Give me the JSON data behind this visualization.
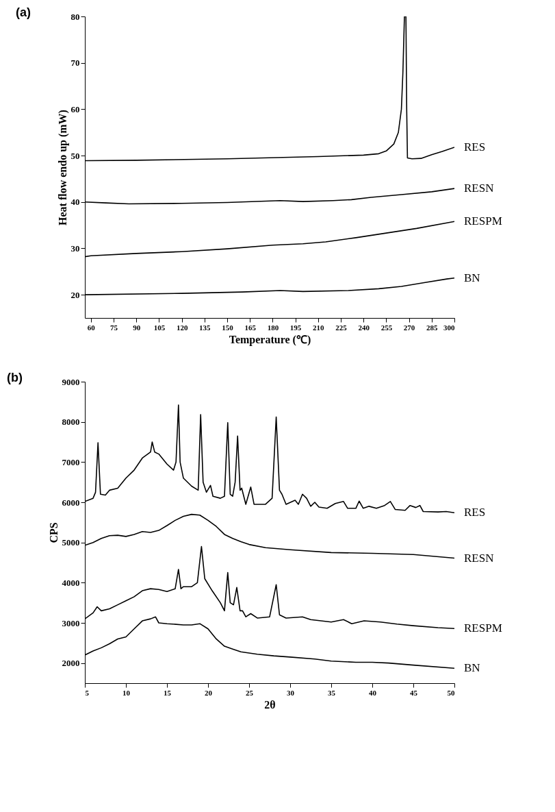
{
  "chart_data": [
    {
      "type": "line",
      "title": "(a)",
      "xlabel": "Temperature (℃)",
      "ylabel": "Heat flow endo up (mW)",
      "xlim": [
        56,
        300
      ],
      "ylim": [
        15,
        80
      ],
      "xticks": [
        60,
        75,
        90,
        105,
        120,
        135,
        150,
        165,
        180,
        195,
        210,
        225,
        240,
        255,
        270,
        285,
        300
      ],
      "yticks": [
        20,
        30,
        40,
        50,
        60,
        70,
        80
      ],
      "grid": false,
      "legend": false,
      "marker": "none",
      "line_style": "solid",
      "series": [
        {
          "name": "RES",
          "color": "#000000",
          "x": [
            56,
            90,
            150,
            210,
            240,
            250,
            255,
            260,
            263,
            265,
            266,
            267,
            268,
            268.5,
            269,
            272,
            278,
            285,
            292,
            300
          ],
          "values": [
            48.9,
            49.0,
            49.3,
            49.8,
            50.1,
            50.4,
            51,
            52.5,
            55,
            60,
            68,
            80,
            80,
            60,
            49.5,
            49.3,
            49.4,
            50.2,
            50.9,
            51.8
          ]
        },
        {
          "name": "RESN",
          "color": "#000000",
          "x": [
            56,
            70,
            85,
            120,
            150,
            185,
            200,
            220,
            232,
            245,
            265,
            285,
            300
          ],
          "values": [
            40,
            39.8,
            39.6,
            39.7,
            39.9,
            40.3,
            40.1,
            40.3,
            40.5,
            41.0,
            41.6,
            42.2,
            42.9
          ]
        },
        {
          "name": "RESPM",
          "color": "#000000",
          "x": [
            56,
            60,
            90,
            120,
            150,
            180,
            200,
            215,
            235,
            255,
            275,
            300
          ],
          "values": [
            28.2,
            28.4,
            28.9,
            29.3,
            29.9,
            30.7,
            31.0,
            31.4,
            32.3,
            33.3,
            34.3,
            35.8
          ]
        },
        {
          "name": "BN",
          "color": "#000000",
          "x": [
            56,
            120,
            160,
            185,
            200,
            230,
            250,
            265,
            280,
            295,
            300
          ],
          "values": [
            20,
            20.3,
            20.6,
            20.9,
            20.7,
            20.9,
            21.3,
            21.8,
            22.6,
            23.4,
            23.6
          ]
        }
      ]
    },
    {
      "type": "line",
      "title": "(b)",
      "xlabel": "2θ",
      "ylabel": "CPS",
      "xlim": [
        5,
        50
      ],
      "ylim": [
        1500,
        9000
      ],
      "xticks": [
        5,
        10,
        15,
        20,
        25,
        30,
        35,
        40,
        45,
        50
      ],
      "yticks": [
        2000,
        3000,
        4000,
        5000,
        6000,
        7000,
        8000,
        9000
      ],
      "grid": false,
      "legend": false,
      "marker": "none",
      "line_style": "solid",
      "series": [
        {
          "name": "RES",
          "color": "#000000",
          "x": [
            5,
            6,
            6.3,
            6.6,
            6.9,
            7.5,
            8,
            9,
            10,
            11,
            12,
            13,
            13.2,
            13.5,
            14,
            15,
            15.8,
            16.1,
            16.4,
            16.6,
            17,
            18,
            18.8,
            19.1,
            19.4,
            19.8,
            20.3,
            20.6,
            21.5,
            22,
            22.4,
            22.7,
            23,
            23.3,
            23.6,
            23.9,
            24.1,
            24.6,
            25.2,
            25.6,
            27,
            27.8,
            28.3,
            28.7,
            29.0,
            29.5,
            30.6,
            31.0,
            31.5,
            32,
            32.5,
            33,
            33.5,
            34.5,
            35.5,
            36.5,
            37,
            38,
            38.4,
            38.9,
            39.6,
            40.5,
            41.5,
            42.2,
            42.8,
            44,
            44.6,
            45.3,
            45.8,
            46.2,
            48,
            49,
            50
          ],
          "values": [
            6020,
            6100,
            6250,
            7480,
            6200,
            6180,
            6300,
            6350,
            6600,
            6800,
            7100,
            7250,
            7500,
            7250,
            7200,
            6950,
            6800,
            7000,
            8420,
            7000,
            6600,
            6400,
            6300,
            8180,
            6500,
            6250,
            6420,
            6150,
            6100,
            6150,
            7980,
            6200,
            6150,
            6500,
            7650,
            6300,
            6350,
            5950,
            6380,
            5950,
            5950,
            6100,
            8120,
            6300,
            6200,
            5950,
            6050,
            5950,
            6200,
            6100,
            5900,
            6000,
            5880,
            5850,
            5970,
            6020,
            5850,
            5850,
            6030,
            5850,
            5900,
            5850,
            5920,
            6020,
            5820,
            5800,
            5920,
            5870,
            5920,
            5770,
            5760,
            5770,
            5740
          ]
        },
        {
          "name": "RESN",
          "color": "#000000",
          "x": [
            5,
            6,
            7,
            8,
            9,
            10,
            11,
            12,
            13,
            14,
            15,
            16,
            17,
            18,
            19,
            20,
            21,
            22,
            23,
            24,
            25,
            27,
            30,
            35,
            40,
            45,
            50
          ],
          "values": [
            4930,
            5000,
            5100,
            5170,
            5180,
            5150,
            5200,
            5270,
            5250,
            5300,
            5420,
            5550,
            5650,
            5700,
            5680,
            5550,
            5400,
            5200,
            5100,
            5020,
            4950,
            4870,
            4820,
            4750,
            4730,
            4700,
            4610
          ]
        },
        {
          "name": "RESPM",
          "color": "#000000",
          "x": [
            5,
            6,
            6.5,
            7,
            8,
            9,
            10,
            11,
            12,
            13,
            14,
            15,
            16,
            16.4,
            16.7,
            17,
            18,
            18.7,
            19.2,
            19.6,
            20.5,
            21.5,
            22,
            22.4,
            22.7,
            23.1,
            23.5,
            23.9,
            24.2,
            24.6,
            25.2,
            26,
            27.5,
            28.3,
            28.7,
            29.5,
            31.5,
            32.5,
            35,
            36.5,
            37.5,
            39,
            41,
            43,
            45,
            48,
            50
          ],
          "values": [
            3100,
            3250,
            3400,
            3300,
            3350,
            3450,
            3550,
            3650,
            3800,
            3850,
            3830,
            3780,
            3850,
            4330,
            3850,
            3900,
            3900,
            4000,
            4900,
            4100,
            3800,
            3500,
            3300,
            4250,
            3500,
            3450,
            3880,
            3300,
            3300,
            3150,
            3230,
            3120,
            3150,
            3950,
            3200,
            3120,
            3150,
            3080,
            3020,
            3080,
            2980,
            3050,
            3020,
            2970,
            2930,
            2880,
            2860
          ]
        },
        {
          "name": "BN",
          "color": "#000000",
          "x": [
            5,
            6,
            7,
            8,
            9,
            10,
            11,
            12,
            13,
            13.6,
            14,
            15,
            17,
            18,
            19,
            20,
            21,
            22,
            23,
            24,
            26,
            28,
            30,
            33,
            35,
            38,
            40,
            42,
            45,
            50
          ],
          "values": [
            2200,
            2300,
            2380,
            2480,
            2600,
            2650,
            2850,
            3050,
            3100,
            3150,
            3000,
            2980,
            2950,
            2950,
            2980,
            2850,
            2600,
            2420,
            2350,
            2280,
            2220,
            2180,
            2150,
            2100,
            2050,
            2020,
            2020,
            2000,
            1950,
            1870
          ]
        }
      ]
    }
  ]
}
